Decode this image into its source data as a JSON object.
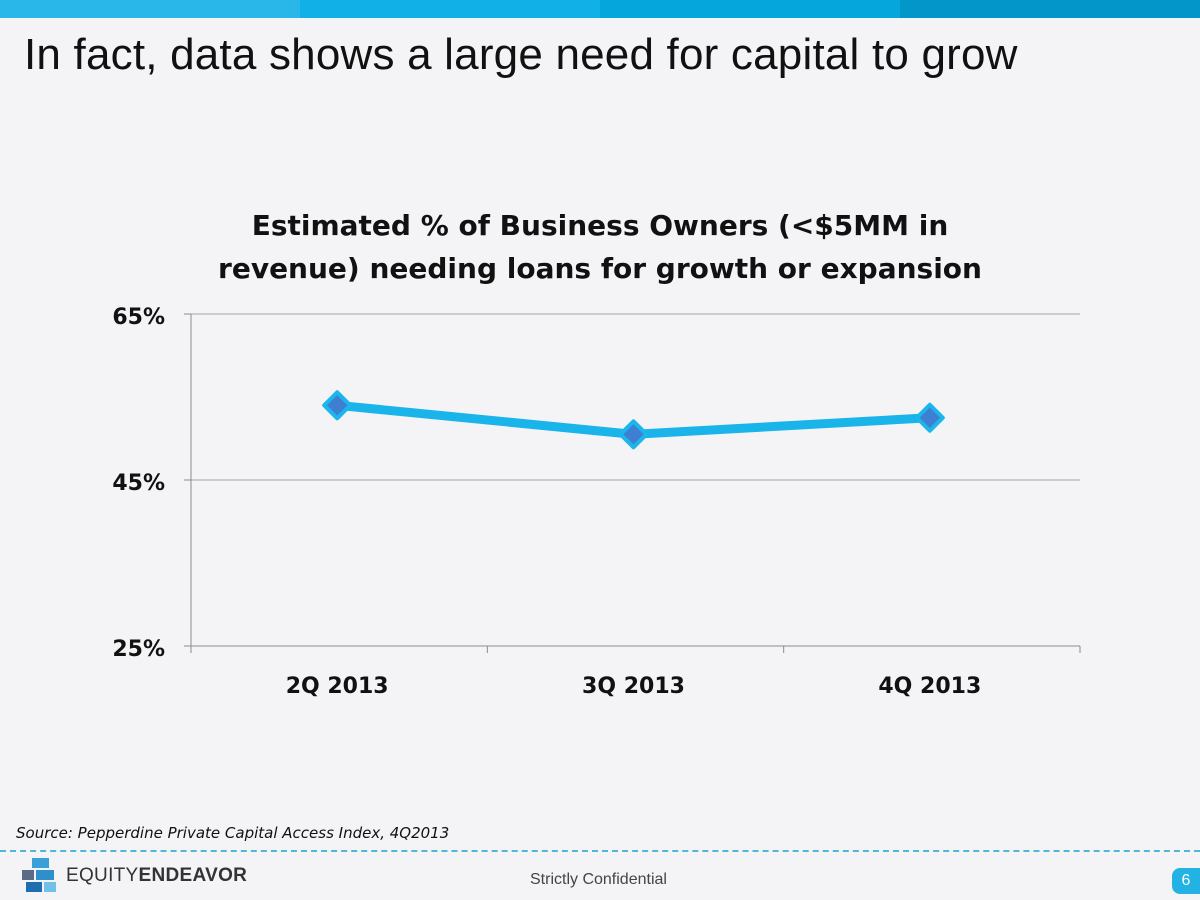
{
  "slide": {
    "title": "In fact, data shows a large need for capital to grow",
    "source": "Source: Pepperdine Private Capital Access Index, 4Q2013",
    "footer": "Strictly Confidential",
    "page_number": "6",
    "logo": {
      "part1": "EQUITY",
      "part2": "ENDEAVOR"
    }
  },
  "colors": {
    "accent": "#1bb3e8",
    "line": "#18b4ea",
    "marker_fill": "#3f7fd2",
    "marker_outline": "#1bb6ec",
    "gridline": "#a6a6a6",
    "axis": "#8c8c8c"
  },
  "chart_data": {
    "type": "line",
    "title_lines": [
      "Estimated % of Business Owners (<$5MM in",
      "revenue) needing loans for growth or expansion"
    ],
    "categories": [
      "2Q 2013",
      "3Q 2013",
      "4Q 2013"
    ],
    "series": [
      {
        "values": [
          54,
          50.5,
          52.5
        ],
        "marker": "diamond"
      }
    ],
    "ylim": [
      25,
      65
    ],
    "y_ticks": [
      25,
      45,
      65
    ],
    "y_tick_labels": [
      "25%",
      "45%",
      "65%"
    ],
    "grid": true,
    "legend": "none"
  }
}
